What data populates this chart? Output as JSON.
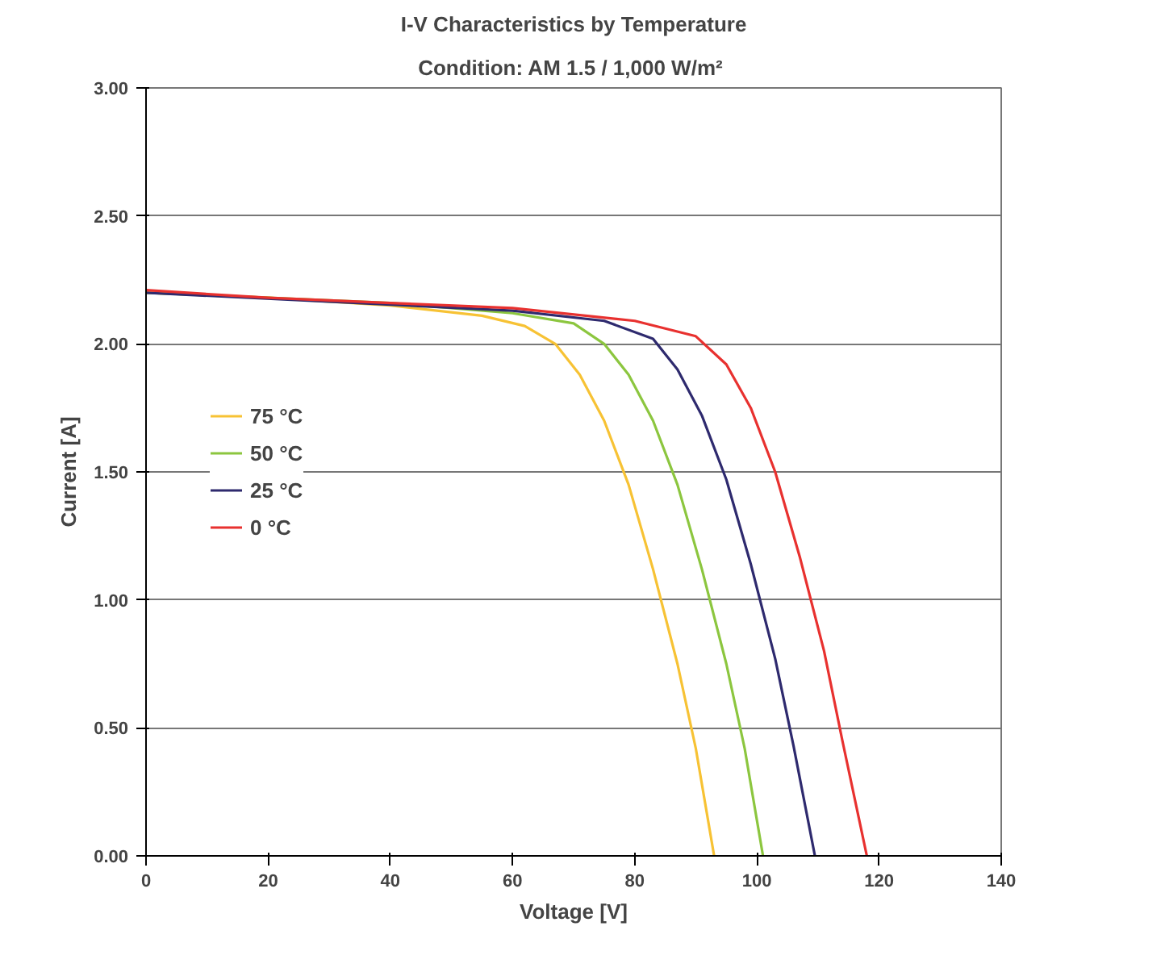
{
  "chart_data": {
    "type": "line",
    "title": "I-V Characteristics by Temperature",
    "subtitle": "Condition:  AM 1.5 / 1,000 W/m²",
    "xlabel": "Voltage [V]",
    "ylabel": "Current [A]",
    "xlim": [
      0,
      140
    ],
    "xticks": [
      0,
      20,
      40,
      60,
      80,
      100,
      120,
      140
    ],
    "ylim": [
      0,
      3
    ],
    "yticks": [
      {
        "value": 0,
        "label": "0.00"
      },
      {
        "value": 0.5,
        "label": "0.50"
      },
      {
        "value": 1,
        "label": "1.00"
      },
      {
        "value": 1.5,
        "label": "1.50"
      },
      {
        "value": 2,
        "label": "2.00"
      },
      {
        "value": 2.5,
        "label": "2.50"
      },
      {
        "value": 3,
        "label": "3.00"
      }
    ],
    "grid": "y",
    "legend": "left",
    "marker": "none",
    "line_style": "solid",
    "series": [
      {
        "name": "75 °C",
        "color": "#f7c234",
        "x": [
          0,
          20,
          40,
          55,
          62,
          67,
          71,
          75,
          79,
          83,
          87,
          90,
          93
        ],
        "values": [
          2.2,
          2.18,
          2.15,
          2.11,
          2.07,
          2.0,
          1.88,
          1.7,
          1.45,
          1.12,
          0.75,
          0.42,
          0
        ]
      },
      {
        "name": "50 °C",
        "color": "#8cc63f",
        "x": [
          0,
          20,
          40,
          60,
          70,
          75,
          79,
          83,
          87,
          91,
          95,
          98,
          101
        ],
        "values": [
          2.2,
          2.18,
          2.16,
          2.12,
          2.08,
          2.0,
          1.88,
          1.7,
          1.45,
          1.12,
          0.75,
          0.42,
          0
        ]
      },
      {
        "name": "25 °C",
        "color": "#2e2a6e",
        "x": [
          0,
          60,
          75,
          83,
          87,
          91,
          95,
          99,
          103,
          106,
          109.5
        ],
        "values": [
          2.2,
          2.13,
          2.09,
          2.02,
          1.9,
          1.72,
          1.47,
          1.14,
          0.77,
          0.43,
          0
        ]
      },
      {
        "name": "0 °C",
        "color": "#e8312f",
        "x": [
          0,
          20,
          40,
          60,
          80,
          90,
          95,
          99,
          103,
          107,
          111,
          114,
          118
        ],
        "values": [
          2.21,
          2.18,
          2.16,
          2.14,
          2.09,
          2.03,
          1.92,
          1.75,
          1.5,
          1.17,
          0.8,
          0.45,
          0
        ]
      }
    ]
  }
}
